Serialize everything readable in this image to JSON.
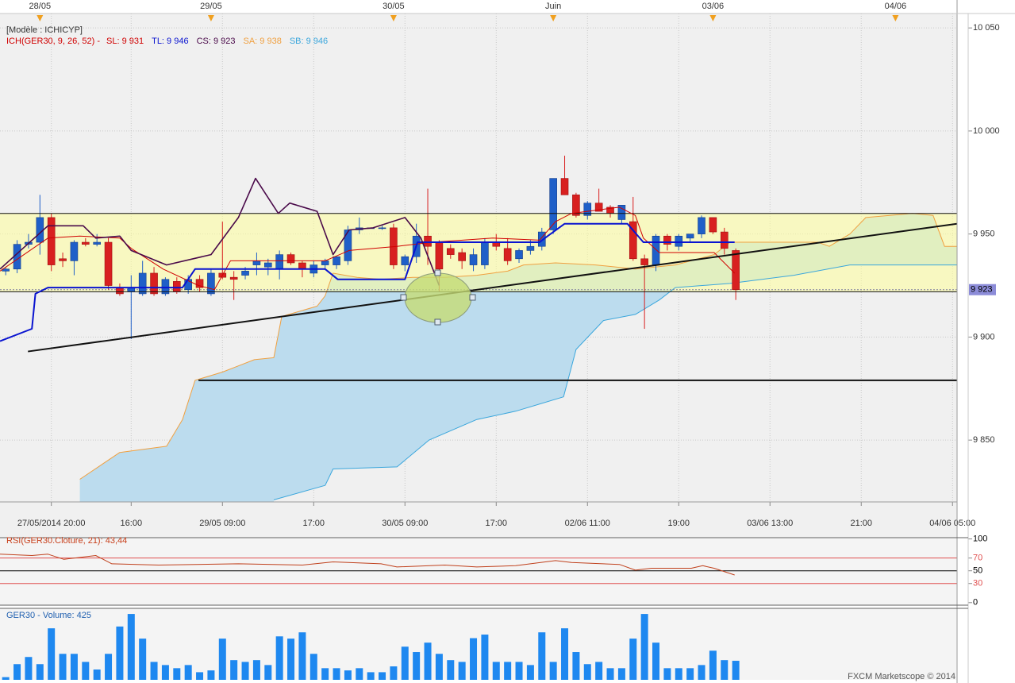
{
  "chart_data": [
    {
      "type": "candlestick",
      "title": "[Modèle : ICHICYP]",
      "indicator_label": "ICH(GER30, 9, 26, 52) -",
      "xlim": [
        -0.5,
        83.4
      ],
      "ylim": [
        9820,
        10057
      ],
      "yticks": [
        {
          "value": 10050,
          "label": "10 050"
        },
        {
          "value": 10000,
          "label": "10 000"
        },
        {
          "value": 9950,
          "label": "9 950"
        },
        {
          "value": 9900,
          "label": "9 900"
        },
        {
          "value": 9850,
          "label": "9 850"
        }
      ],
      "xticks": [
        {
          "value": 4,
          "label": "27/05/2014 20:00"
        },
        {
          "value": 11,
          "label": "16:00"
        },
        {
          "value": 19,
          "label": "29/05 09:00"
        },
        {
          "value": 27,
          "label": "17:00"
        },
        {
          "value": 35,
          "label": "30/05 09:00"
        },
        {
          "value": 43,
          "label": "17:00"
        },
        {
          "value": 51,
          "label": "02/06 11:00"
        },
        {
          "value": 59,
          "label": "19:00"
        },
        {
          "value": 67,
          "label": "03/06 13:00"
        },
        {
          "value": 75,
          "label": "21:00"
        },
        {
          "value": 83,
          "label": "04/06 05:00"
        }
      ],
      "top_xticks": [
        {
          "value": 3,
          "label": "28/05"
        },
        {
          "value": 18,
          "label": "29/05"
        },
        {
          "value": 34,
          "label": "30/05"
        },
        {
          "value": 48,
          "label": "Juin"
        },
        {
          "value": 62,
          "label": "03/06"
        },
        {
          "value": 78,
          "label": "04/06"
        }
      ],
      "grid": true,
      "up_color": "#1f5fc8",
      "down_color": "#d82020",
      "ohlc": [
        [
          9932,
          9934,
          9930,
          9933
        ],
        [
          9933,
          9947,
          9931,
          9945
        ],
        [
          9945,
          9950,
          9943,
          9946
        ],
        [
          9946,
          9969,
          9940,
          9958
        ],
        [
          9958,
          9960,
          9932,
          9935
        ],
        [
          9938,
          9941,
          9934,
          9937
        ],
        [
          9937,
          9947,
          9930,
          9946
        ],
        [
          9946,
          9948,
          9944,
          9945
        ],
        [
          9945,
          9950,
          9944,
          9946
        ],
        [
          9946,
          9948,
          9923,
          9925
        ],
        [
          9924,
          9926,
          9920,
          9921
        ],
        [
          9922,
          9930,
          9899,
          9924
        ],
        [
          9921,
          9937,
          9920,
          9931
        ],
        [
          9931,
          9934,
          9920,
          9921
        ],
        [
          9921,
          9929,
          9920,
          9928
        ],
        [
          9927,
          9929,
          9921,
          9922
        ],
        [
          9923,
          9930,
          9921,
          9928
        ],
        [
          9928,
          9930,
          9922,
          9924
        ],
        [
          9921,
          9933,
          9920,
          9931
        ],
        [
          9931,
          9956,
          9928,
          9929
        ],
        [
          9929,
          9932,
          9918,
          9928
        ],
        [
          9930,
          9934,
          9928,
          9932
        ],
        [
          9935,
          9941,
          9930,
          9937
        ],
        [
          9934,
          9938,
          9930,
          9936
        ],
        [
          9933,
          9942,
          9928,
          9940
        ],
        [
          9940,
          9941,
          9935,
          9936
        ],
        [
          9936,
          9937,
          9929,
          9933
        ],
        [
          9931,
          9937,
          9929,
          9935
        ],
        [
          9935,
          9938,
          9933,
          9937
        ],
        [
          9935,
          9939,
          9933,
          9939
        ],
        [
          9937,
          9954,
          9935,
          9952
        ],
        [
          9952,
          9958,
          9950,
          9953
        ],
        [
          9953,
          9953,
          9953,
          9953
        ],
        [
          9953,
          9954,
          9952,
          9953
        ],
        [
          9953,
          9955,
          9933,
          9935
        ],
        [
          9935,
          9940,
          9932,
          9939
        ],
        [
          9939,
          9955,
          9936,
          9949
        ],
        [
          9949,
          9972,
          9935,
          9944
        ],
        [
          9946,
          9947,
          9922,
          9933
        ],
        [
          9943,
          9945,
          9938,
          9940
        ],
        [
          9941,
          9943,
          9933,
          9937
        ],
        [
          9935,
          9943,
          9932,
          9940
        ],
        [
          9935,
          9948,
          9933,
          9946
        ],
        [
          9946,
          9950,
          9942,
          9944
        ],
        [
          9943,
          9948,
          9935,
          9937
        ],
        [
          9938,
          9943,
          9936,
          9942
        ],
        [
          9942,
          9947,
          9940,
          9944
        ],
        [
          9944,
          9953,
          9942,
          9951
        ],
        [
          9952,
          9977,
          9950,
          9977
        ],
        [
          9977,
          9988,
          9969,
          9969
        ],
        [
          9969,
          9970,
          9958,
          9959
        ],
        [
          9959,
          9966,
          9957,
          9965
        ],
        [
          9965,
          9972,
          9961,
          9961
        ],
        [
          9963,
          9964,
          9958,
          9960
        ],
        [
          9957,
          9964,
          9955,
          9964
        ],
        [
          9956,
          9968,
          9937,
          9938
        ],
        [
          9938,
          9940,
          9904,
          9935
        ],
        [
          9935,
          9950,
          9932,
          9949
        ],
        [
          9949,
          9950,
          9942,
          9945
        ],
        [
          9944,
          9950,
          9942,
          9949
        ],
        [
          9948,
          9950,
          9946,
          9950
        ],
        [
          9950,
          9959,
          9948,
          9958
        ],
        [
          9958,
          9958,
          9950,
          9951
        ],
        [
          9951,
          9953,
          9940,
          9943
        ],
        [
          9942,
          9943,
          9918,
          9923
        ]
      ],
      "series": [
        {
          "name": "SL: 9 931",
          "color": "#d00000",
          "x": [
            -0.5,
            3.7,
            6.5,
            10,
            11,
            13.8,
            16.9,
            18.3,
            19.7,
            26,
            28,
            30.1,
            34.3,
            37.4,
            42.7,
            46.8,
            48.2,
            49.6,
            53.8,
            55.2,
            55.9,
            57.3,
            62.1,
            63.9
          ],
          "values": [
            9932,
            9948,
            9949,
            9948,
            9943,
            9933,
            9925,
            9923,
            9937,
            9937,
            9937,
            9942,
            9944,
            9946,
            9948,
            9947,
            9956,
            9960,
            9963,
            9959,
            9948,
            9941,
            9941,
            9931
          ]
        },
        {
          "name": "TL: 9 946",
          "color": "#0a14d0",
          "x": [
            -0.5,
            2.3,
            2.6,
            3.7,
            7.2,
            15.5,
            16.6,
            28,
            29.1,
            35,
            36.1,
            46.8,
            47.5,
            49,
            54.5,
            55.9,
            63.9
          ],
          "values": [
            9898,
            9904,
            9921,
            9924,
            9924,
            9924,
            9933,
            9933,
            9928,
            9928,
            9946,
            9946,
            9949,
            9955,
            9955,
            9946,
            9946
          ]
        },
        {
          "name": "CS: 9 923",
          "color": "#4a0a4a",
          "x": [
            -0.5,
            3.7,
            6.8,
            7.9,
            10,
            11,
            14.1,
            18,
            20.4,
            21.9,
            23.9,
            24.9,
            27.3,
            28.7,
            30.1,
            32.2,
            35,
            36.4,
            38
          ],
          "values": [
            9933,
            9954,
            9954,
            9948,
            9949,
            9942,
            9935,
            9940,
            9958,
            9977,
            9960,
            9965,
            9961,
            9940,
            9952,
            9953,
            9958,
            9948,
            9925
          ]
        },
        {
          "name": "SA: 9 938",
          "color": "#f0a040",
          "x": [
            6.5,
            10,
            14.1,
            15.5,
            16.6,
            19,
            20.4,
            21.8,
            23.5,
            24.2,
            27.3,
            28,
            28.7,
            30.8,
            32.9,
            35.7,
            38.5,
            41.3,
            44,
            45.4,
            48.2,
            51.7,
            55.2,
            58.7,
            62.1,
            63.5,
            71.2,
            72.2,
            74,
            75.4,
            79.5,
            81.3,
            82.3,
            83.4
          ],
          "values": [
            9831,
            9844,
            9847,
            9860,
            9879,
            9883,
            9886,
            9889,
            9890,
            9910,
            9915,
            9920,
            9931,
            9929,
            9928,
            9929,
            9929,
            9930,
            9932,
            9935,
            9936,
            9935,
            9933,
            9935,
            9940,
            9946,
            9946,
            9944,
            9950,
            9958,
            9960,
            9959,
            9944,
            9944
          ]
        },
        {
          "name": "SB: 9 946",
          "color": "#3aa6dc",
          "x": [
            23.5,
            28,
            28.7,
            34.3,
            37.1,
            41.3,
            44.7,
            48.9,
            50,
            52.4,
            55.2,
            57.3,
            58.7,
            63.5,
            69.1,
            74,
            83.4
          ],
          "values": [
            9821,
            9828,
            9836,
            9837,
            9850,
            9860,
            9864,
            9871,
            9894,
            9908,
            9911,
            9918,
            9924,
            9926,
            9930,
            9935,
            9935
          ]
        }
      ],
      "cloud_color": "#bcdcee",
      "last_price": {
        "value": 9923,
        "label": "9 923"
      },
      "band": [
        9922,
        9960
      ],
      "trendline": {
        "x": [
          1.95,
          83.4
        ],
        "values": [
          9893,
          9955
        ]
      },
      "hline": {
        "x": [
          16.9,
          83.4
        ],
        "value": 9879
      }
    },
    {
      "type": "line",
      "title": "RSI(GER30.Cloture, 21): 43,44",
      "color": "#c0401c",
      "xlim": [
        -0.5,
        83.4
      ],
      "ylim": [
        -4,
        102
      ],
      "yticks": [
        0,
        30,
        50,
        70,
        100
      ],
      "reference_lines": [
        {
          "value": 70,
          "color": "#e05050"
        },
        {
          "value": 50,
          "color": "#000000"
        },
        {
          "value": 30,
          "color": "#e05050"
        }
      ],
      "x": [
        -0.5,
        2.3,
        3.7,
        5.1,
        7.9,
        9.3,
        13.4,
        20.4,
        26,
        28.7,
        32.9,
        34.3,
        38.5,
        41.3,
        44.7,
        48.2,
        49.6,
        53.8,
        55.2,
        56.6,
        60.1,
        61.1,
        62.1,
        63.9
      ],
      "values": [
        76,
        74,
        76,
        68,
        74,
        61,
        59,
        61,
        59,
        64,
        61,
        56,
        59,
        56,
        58,
        66,
        63,
        60,
        51,
        54,
        54,
        58,
        54,
        43.44
      ]
    },
    {
      "type": "bar",
      "title": "GER30 - Volume: 425",
      "color": "#1e88f0",
      "xlim": [
        -0.5,
        83.4
      ],
      "ylim": [
        0,
        1560
      ],
      "values": [
        60,
        350,
        510,
        350,
        1150,
        580,
        580,
        400,
        230,
        580,
        1190,
        1470,
        920,
        400,
        330,
        260,
        330,
        170,
        210,
        920,
        440,
        400,
        440,
        330,
        970,
        920,
        1060,
        580,
        260,
        260,
        210,
        260,
        170,
        170,
        300,
        740,
        620,
        830,
        580,
        440,
        400,
        930,
        1010,
        400,
        400,
        400,
        330,
        1060,
        400,
        1150,
        620,
        350,
        400,
        260,
        260,
        920,
        1470,
        830,
        260,
        260,
        260,
        330,
        650,
        440,
        425
      ]
    }
  ],
  "footer": "FXCM Marketscope © 2014"
}
